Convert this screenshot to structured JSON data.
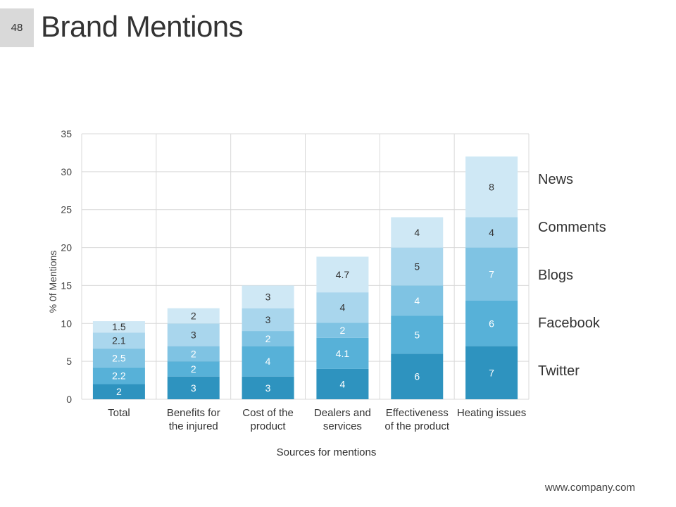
{
  "slide": {
    "number": "48",
    "title": "Brand Mentions",
    "footer": "www.company.com"
  },
  "chart_data": {
    "type": "bar",
    "stacked": true,
    "title": "Brand Mentions",
    "xlabel": "Sources for mentions",
    "ylabel": "% 0f Mentions",
    "ylim": [
      0,
      35
    ],
    "yticks": [
      0,
      5,
      10,
      15,
      20,
      25,
      30,
      35
    ],
    "grid": true,
    "legend_position": "right",
    "categories": [
      [
        "Total"
      ],
      [
        "Benefits for",
        "the injured"
      ],
      [
        "Cost of the",
        "product"
      ],
      [
        "Dealers and",
        "services"
      ],
      [
        "Effectiveness",
        "of the product"
      ],
      [
        "Heating issues"
      ]
    ],
    "series": [
      {
        "name": "Twitter",
        "color": "#2e93bf",
        "label_color": "#ffffff",
        "values": [
          2,
          3,
          3,
          4,
          6,
          7
        ]
      },
      {
        "name": "Facebook",
        "color": "#57b1d8",
        "label_color": "#ffffff",
        "values": [
          2.2,
          2,
          4,
          4.1,
          5,
          6
        ]
      },
      {
        "name": "Blogs",
        "color": "#7fc3e3",
        "label_color": "#ffffff",
        "values": [
          2.5,
          2,
          2,
          2,
          4,
          7
        ]
      },
      {
        "name": "Comments",
        "color": "#a9d6ed",
        "label_color": "#333333",
        "values": [
          2.1,
          3,
          3,
          4,
          5,
          4
        ]
      },
      {
        "name": "News",
        "color": "#cfe8f5",
        "label_color": "#333333",
        "values": [
          1.5,
          2,
          3,
          4.7,
          4,
          8
        ]
      }
    ],
    "legend_order": [
      "News",
      "Comments",
      "Blogs",
      "Facebook",
      "Twitter"
    ]
  }
}
